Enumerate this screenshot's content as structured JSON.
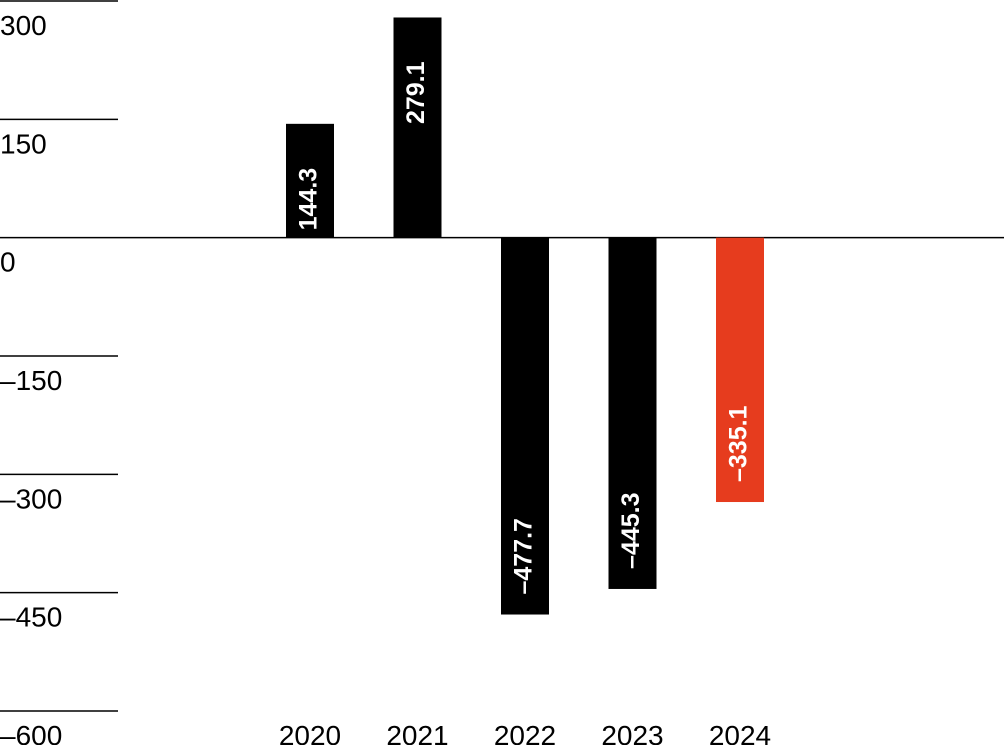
{
  "chart_data": {
    "type": "bar",
    "title": "",
    "xlabel": "",
    "ylabel": "",
    "categories": [
      "2020",
      "2021",
      "2022",
      "2023",
      "2024"
    ],
    "values": [
      144.3,
      279.1,
      -477.7,
      -445.3,
      -335.1
    ],
    "data_labels": [
      "144.3",
      "279.1",
      "–477.7",
      "–445.3",
      "–335.1"
    ],
    "bar_colors": [
      "#000000",
      "#000000",
      "#000000",
      "#000000",
      "#e63c1e"
    ],
    "ylim": [
      -600,
      300
    ],
    "yticks": [
      300,
      150,
      0,
      -150,
      -300,
      -450,
      -600
    ],
    "ytick_labels": [
      "300",
      "150",
      "0",
      "–150",
      "–300",
      "–450",
      "–600"
    ],
    "grid": false,
    "legend": "none"
  }
}
